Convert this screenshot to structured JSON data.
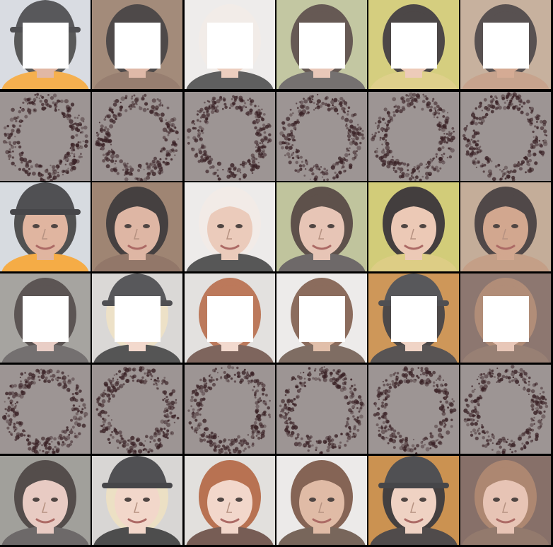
{
  "grid": {
    "rows": 6,
    "cols": 6,
    "groups": [
      {
        "masked_row": [
          {
            "icon": "bobby-helmet-face-icon",
            "skin": "#d9a58c",
            "hair": "#2b2b2b",
            "bg": "#cfd3da",
            "cloth": "#f39a1e",
            "hat": true
          },
          {
            "icon": "dark-hair-woman-face-icon",
            "skin": "#d7a690",
            "hair": "#1d1717",
            "bg": "#8a6b55",
            "cloth": "#7a5a48"
          },
          {
            "icon": "bald-old-man-face-icon",
            "skin": "#e7c0ad",
            "hair": "#efe7e2",
            "bg": "#e9e7e6",
            "cloth": "#333333"
          },
          {
            "icon": "brunette-woman-face-icon",
            "skin": "#e2b9a6",
            "hair": "#3b2b24",
            "bg": "#b2b888",
            "cloth": "#4f4948"
          },
          {
            "icon": "girl-flowers-face-icon",
            "skin": "#e8bda6",
            "hair": "#1a1414",
            "bg": "#c9c15c",
            "cloth": "#d6c36b"
          },
          {
            "icon": "sunglasses-man-face-icon",
            "skin": "#c99477",
            "hair": "#2a2020",
            "bg": "#b89c83",
            "cloth": "#b88a6d"
          }
        ],
        "restored_row_colors": [
          "#d9a58c",
          "#d7a690",
          "#e7c0ad",
          "#e2b9a6",
          "#e8bda6",
          "#c99477"
        ]
      },
      {
        "masked_row": [
          {
            "icon": "woman-side-face-icon",
            "skin": "#e3c0b6",
            "hair": "#2f2624",
            "bg": "#8d8b86",
            "cloth": "#4d4848"
          },
          {
            "icon": "blonde-graduate-face-icon",
            "skin": "#f0cfbf",
            "hair": "#e8d9b8",
            "bg": "#d0cdcb",
            "cloth": "#262626",
            "hat": true
          },
          {
            "icon": "redhead-woman-face-icon",
            "skin": "#efcfc0",
            "hair": "#a9542d",
            "bg": "#dcd9d6",
            "cloth": "#5a3a30"
          },
          {
            "icon": "curly-hair-man-face-icon",
            "skin": "#d9ad93",
            "hair": "#6b4330",
            "bg": "#e8e6e4",
            "cloth": "#5b4538"
          },
          {
            "icon": "cap-girl-face-icon",
            "skin": "#ecc8b6",
            "hair": "#1b1616",
            "bg": "#c07a2b",
            "cloth": "#2a2424",
            "hat": true
          },
          {
            "icon": "brown-hair-girl-face-icon",
            "skin": "#e2b8a5",
            "hair": "#9b6d52",
            "bg": "#6d5148",
            "cloth": "#7c5d4e"
          }
        ],
        "restored_row_colors": [
          "#e3c0b6",
          "#f0cfbf",
          "#efcfc0",
          "#d9ad93",
          "#ecc8b6",
          "#e2b8a5"
        ]
      }
    ]
  }
}
